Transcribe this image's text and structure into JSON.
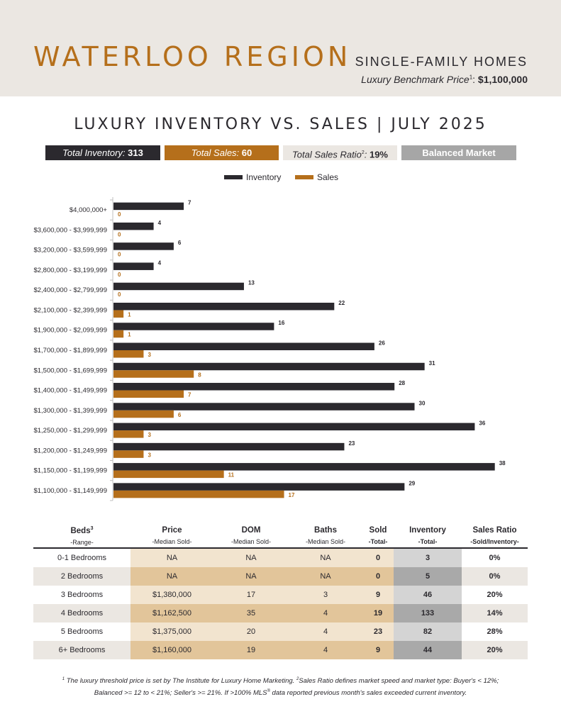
{
  "header": {
    "region": "WATERLOO REGION",
    "home_type": "SINGLE-FAMILY HOMES",
    "benchmark_label": "Luxury Benchmark Price",
    "benchmark_sup": "1",
    "benchmark_value": "$1,100,000"
  },
  "chart_title": "LUXURY INVENTORY VS. SALES | JULY 2025",
  "summary": {
    "inventory_label": "Total Inventory:",
    "inventory_value": "313",
    "sales_label": "Total Sales:",
    "sales_value": "60",
    "ratio_label": "Total Sales Ratio",
    "ratio_sup": "2",
    "ratio_colon": ":",
    "ratio_value": "19%",
    "market": "Balanced Market"
  },
  "colors": {
    "inventory": "#2b292e",
    "sales": "#b56f1b",
    "accent": "#b56f1b",
    "header_bg": "#ebe7e2"
  },
  "chart_data": {
    "type": "bar",
    "orientation": "horizontal",
    "categories": [
      "$4,000,000+",
      "$3,600,000 - $3,999,999",
      "$3,200,000 - $3,599,999",
      "$2,800,000 - $3,199,999",
      "$2,400,000 - $2,799,999",
      "$2,100,000 - $2,399,999",
      "$1,900,000 - $2,099,999",
      "$1,700,000 - $1,899,999",
      "$1,500,000 - $1,699,999",
      "$1,400,000 - $1,499,999",
      "$1,300,000 - $1,399,999",
      "$1,250,000 - $1,299,999",
      "$1,200,000 - $1,249,999",
      "$1,150,000 - $1,199,999",
      "$1,100,000 - $1,149,999"
    ],
    "series": [
      {
        "name": "Inventory",
        "values": [
          7,
          4,
          6,
          4,
          13,
          22,
          16,
          26,
          31,
          28,
          30,
          36,
          23,
          38,
          29
        ]
      },
      {
        "name": "Sales",
        "values": [
          0,
          0,
          0,
          0,
          0,
          1,
          1,
          3,
          8,
          7,
          6,
          3,
          3,
          11,
          17
        ]
      }
    ],
    "xlim": [
      0,
      40
    ],
    "data_labels": true,
    "legend_position": "top-center",
    "grid": false
  },
  "table": {
    "headers": [
      {
        "title": "Beds",
        "sup": "3",
        "sub": "-Range-"
      },
      {
        "title": "Price",
        "sup": "",
        "sub": "-Median Sold-"
      },
      {
        "title": "DOM",
        "sup": "",
        "sub": "-Median Sold-"
      },
      {
        "title": "Baths",
        "sup": "",
        "sub": "-Median Sold-"
      },
      {
        "title": "Sold",
        "sup": "",
        "sub": "-Total-"
      },
      {
        "title": "Inventory",
        "sup": "",
        "sub": "-Total-"
      },
      {
        "title": "Sales Ratio",
        "sup": "",
        "sub": "-Sold/Inventory-"
      }
    ],
    "rows": [
      {
        "beds": "0-1 Bedrooms",
        "price": "NA",
        "dom": "NA",
        "baths": "NA",
        "sold": "0",
        "inventory": "3",
        "ratio": "0%"
      },
      {
        "beds": "2 Bedrooms",
        "price": "NA",
        "dom": "NA",
        "baths": "NA",
        "sold": "0",
        "inventory": "5",
        "ratio": "0%"
      },
      {
        "beds": "3 Bedrooms",
        "price": "$1,380,000",
        "dom": "17",
        "baths": "3",
        "sold": "9",
        "inventory": "46",
        "ratio": "20%"
      },
      {
        "beds": "4 Bedrooms",
        "price": "$1,162,500",
        "dom": "35",
        "baths": "4",
        "sold": "19",
        "inventory": "133",
        "ratio": "14%"
      },
      {
        "beds": "5 Bedrooms",
        "price": "$1,375,000",
        "dom": "20",
        "baths": "4",
        "sold": "23",
        "inventory": "82",
        "ratio": "28%"
      },
      {
        "beds": "6+ Bedrooms",
        "price": "$1,160,000",
        "dom": "19",
        "baths": "4",
        "sold": "9",
        "inventory": "44",
        "ratio": "20%"
      }
    ]
  },
  "footnote": {
    "line1_sup1": "1",
    "line1_a": " The luxury threshold price is set by The Institute for Luxury Home Marketing. ",
    "line1_sup2": "2",
    "line1_b": "Sales Ratio defines market speed and market type: Buyer's < 12%;",
    "line2_a": "Balanced >= 12 to < 21%; Seller's >= 21%. If >100% MLS",
    "line2_reg": "®",
    "line2_b": " data reported previous month's sales exceeded current inventory."
  }
}
